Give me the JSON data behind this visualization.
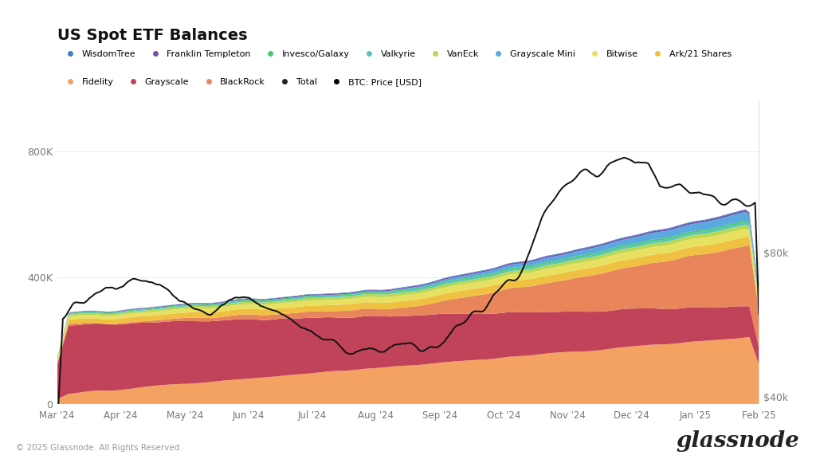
{
  "title": "US Spot ETF Balances",
  "background_color": "#ffffff",
  "x_labels": [
    "Mar '24",
    "Apr '24",
    "May '24",
    "Jun '24",
    "Jul '24",
    "Aug '24",
    "Sep '24",
    "Oct '24",
    "Nov '24",
    "Dec '24",
    "Jan '25",
    "Feb '25"
  ],
  "n_points": 370,
  "ylim_left": [
    0,
    960000
  ],
  "ylim_right": [
    38000,
    122000
  ],
  "left_yticks": [
    0,
    400000,
    800000
  ],
  "left_yticklabels": [
    "0",
    "400K",
    "800K"
  ],
  "right_yticks": [
    40000,
    80000
  ],
  "right_yticklabels": [
    "$40k",
    "$80k"
  ],
  "stack_colors": [
    "#F4A261",
    "#C1435A",
    "#E8855A",
    "#F0C040",
    "#E8E060",
    "#B8D855",
    "#55C5BC",
    "#45C870",
    "#5AAAE0",
    "#7050B0",
    "#4080C0"
  ],
  "stack_labels": [
    "Fidelity",
    "Grayscale",
    "BlackRock",
    "Ark/21 Shares",
    "Bitwise",
    "VanEck",
    "Valkyrie",
    "Invesco/Galaxy",
    "Grayscale Mini",
    "Franklin Templeton",
    "WisdomTree"
  ],
  "legend_entries_row1": [
    {
      "label": "WisdomTree",
      "color": "#4080C0"
    },
    {
      "label": "Franklin Templeton",
      "color": "#7050B0"
    },
    {
      "label": "Invesco/Galaxy",
      "color": "#45C870"
    },
    {
      "label": "Valkyrie",
      "color": "#55C5BC"
    },
    {
      "label": "VanEck",
      "color": "#B8D855"
    },
    {
      "label": "Grayscale Mini",
      "color": "#5AAAE0"
    },
    {
      "label": "Bitwise",
      "color": "#E8E060"
    },
    {
      "label": "Ark/21 Shares",
      "color": "#F0C040"
    }
  ],
  "legend_entries_row2": [
    {
      "label": "Fidelity",
      "color": "#F4A261"
    },
    {
      "label": "Grayscale",
      "color": "#C1435A"
    },
    {
      "label": "BlackRock",
      "color": "#E8855A"
    },
    {
      "label": "Total",
      "color": "#222222"
    },
    {
      "label": "BTC: Price [USD]",
      "color": "#000000"
    }
  ],
  "footer": "© 2025 Glassnode. All Rights Reserved.",
  "watermark": "glassnode"
}
